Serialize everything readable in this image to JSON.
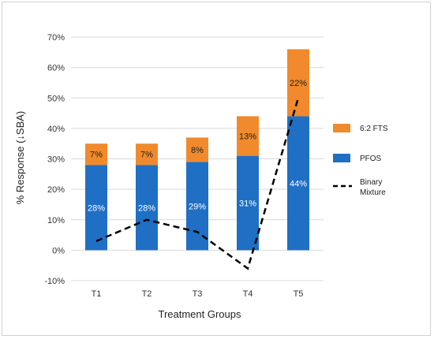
{
  "chart_data": {
    "type": "bar",
    "stacked": true,
    "title": "",
    "xlabel": "Treatment Groups",
    "ylabel": "% Response (↓SBA)",
    "categories": [
      "T1",
      "T2",
      "T3",
      "T4",
      "T5"
    ],
    "ylim": [
      -0.1,
      0.7
    ],
    "yticks": [
      "-10%",
      "0%",
      "10%",
      "20%",
      "30%",
      "40%",
      "50%",
      "60%",
      "70%"
    ],
    "grid": true,
    "legend_position": "right",
    "series": [
      {
        "name": "PFOS",
        "kind": "bar",
        "color": "#1f6fc5",
        "values": [
          0.28,
          0.28,
          0.29,
          0.31,
          0.44
        ],
        "labels": [
          "28%",
          "28%",
          "29%",
          "31%",
          "44%"
        ]
      },
      {
        "name": "6:2 FTS",
        "kind": "bar",
        "color": "#f08a2c",
        "values": [
          0.07,
          0.07,
          0.08,
          0.13,
          0.22
        ],
        "labels": [
          "7%",
          "7%",
          "8%",
          "13%",
          "22%"
        ]
      },
      {
        "name": "Binary Mixture",
        "kind": "line",
        "style": "dashed",
        "color": "#000000",
        "values": [
          0.03,
          0.1,
          0.06,
          -0.06,
          0.5
        ]
      }
    ],
    "legend": {
      "fts": "6:2 FTS",
      "pfos": "PFOS",
      "mix_line1": "Binary",
      "mix_line2": "Mixture"
    }
  }
}
